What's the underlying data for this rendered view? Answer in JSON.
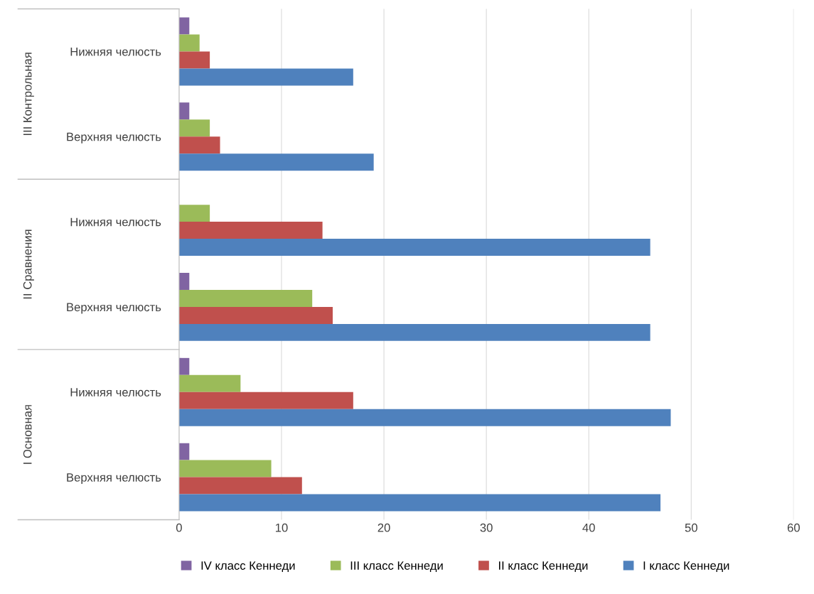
{
  "chart_data": {
    "type": "bar",
    "orientation": "horizontal",
    "categories": [
      "Нижняя челюсть",
      "Верхняя челюсть",
      "Нижняя челюсть",
      "Верхняя челюсть",
      "Нижняя челюсть",
      "Верхняя челюсть"
    ],
    "annotations": [
      "III Контрольная",
      "II Сравнения",
      "I Основная"
    ],
    "series": [
      {
        "name": "IV класс Кеннеди",
        "color": "#8064a2",
        "values": [
          1,
          1,
          0,
          1,
          1,
          1
        ]
      },
      {
        "name": "III класс Кеннеди",
        "color": "#9bbb59",
        "values": [
          2,
          3,
          3,
          13,
          6,
          9
        ]
      },
      {
        "name": "II класс Кеннеди",
        "color": "#c0504d",
        "values": [
          3,
          4,
          14,
          15,
          17,
          12
        ]
      },
      {
        "name": "I класс Кеннеди",
        "color": "#4f81bd",
        "values": [
          17,
          19,
          46,
          46,
          48,
          47
        ]
      }
    ],
    "xlim": [
      0,
      60
    ],
    "xticks": [
      0,
      10,
      20,
      30,
      40,
      50,
      60
    ],
    "grid": "x",
    "legend": "bottom"
  }
}
